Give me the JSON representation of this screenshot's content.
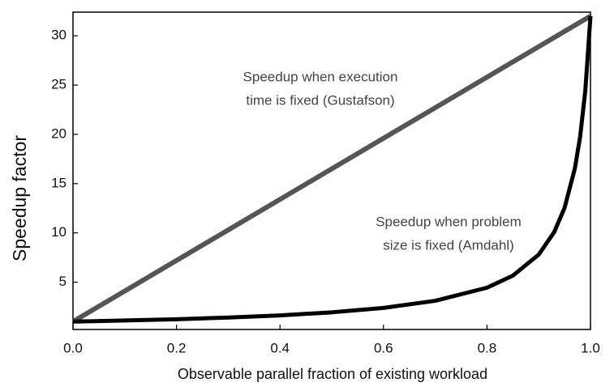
{
  "chart_data": {
    "type": "line",
    "x_label": "Observable parallel fraction of existing workload",
    "y_label": "Speedup factor",
    "xlim": [
      0,
      1
    ],
    "ylim": [
      0.2,
      32.4
    ],
    "xticks": [
      {
        "value": 0,
        "label": "0.0"
      },
      0.2,
      0.4,
      0.6,
      0.8,
      {
        "value": 1,
        "label": "1.0"
      }
    ],
    "yticks": [
      5,
      10,
      15,
      20,
      25,
      30
    ],
    "series": [
      {
        "color": "#555555",
        "x": [
          0,
          1
        ],
        "values": [
          1,
          32
        ]
      },
      {
        "color": "#000000",
        "x": [
          0,
          0.1,
          0.2,
          0.3,
          0.4,
          0.5,
          0.6,
          0.7,
          0.8,
          0.85,
          0.9,
          0.93,
          0.95,
          0.97,
          0.98,
          0.99,
          1
        ],
        "values": [
          1,
          1.11,
          1.24,
          1.41,
          1.63,
          1.94,
          2.39,
          3.11,
          4.44,
          5.66,
          7.8,
          10.09,
          12.55,
          16.58,
          19.75,
          24.43,
          32
        ]
      }
    ],
    "annotations": [
      {
        "lines": [
          "Speedup when execution",
          "time is fixed (Gustafson)"
        ]
      },
      {
        "lines": [
          "Speedup when problem",
          "size is fixed (Amdahl)"
        ]
      }
    ]
  }
}
